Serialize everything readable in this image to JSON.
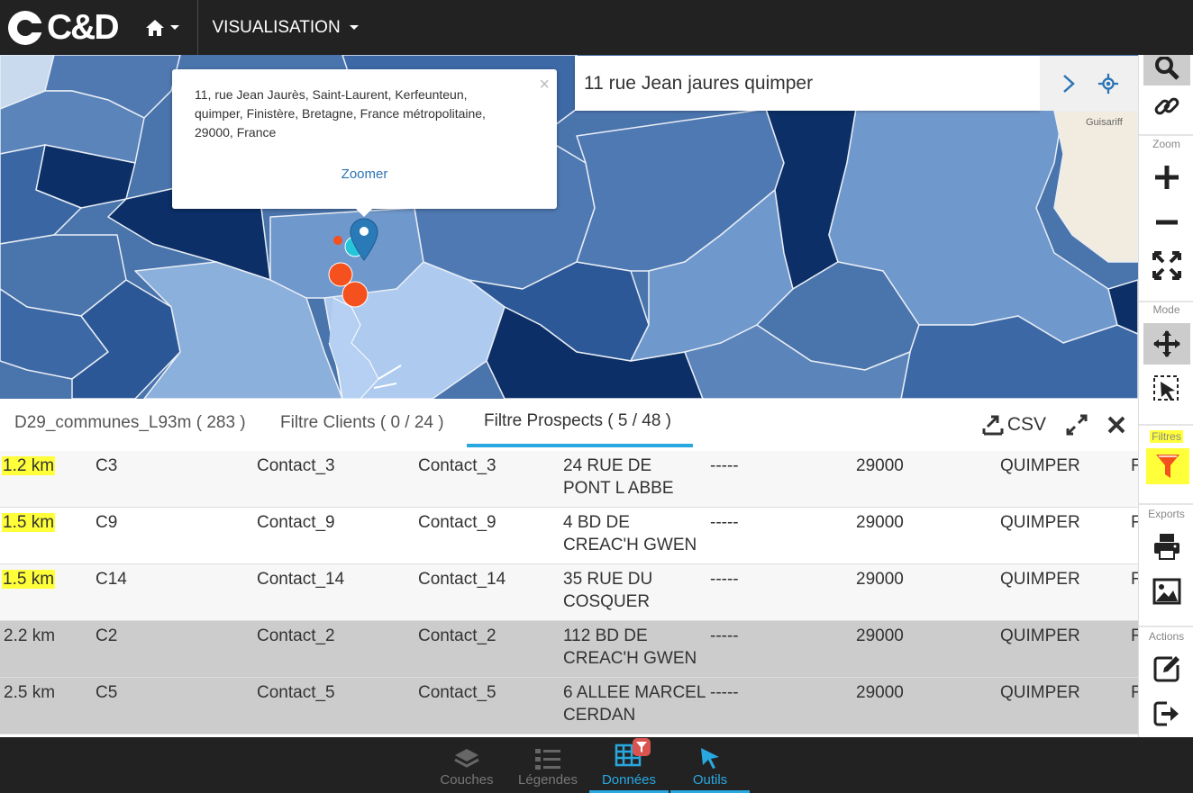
{
  "topbar": {
    "brand": "C&D",
    "menu_label": "VISUALISATION"
  },
  "popup": {
    "address": "11, rue Jean Jaurès, Saint-Laurent, Kerfeunteun, quimper, Finistère, Bretagne, France métropolitaine, 29000, France",
    "close_label": "×",
    "zoom_label": "Zoomer"
  },
  "search": {
    "value": "11 rue Jean jaures quimper"
  },
  "map": {
    "place_label": "Guisariff"
  },
  "rightbar": {
    "zoom_label": "Zoom",
    "mode_label": "Mode",
    "filters_label": "Filtres",
    "exports_label": "Exports",
    "actions_label": "Actions"
  },
  "tabs": [
    {
      "label": "D29_communes_L93m ( 283 )"
    },
    {
      "label": "Filtre Clients ( 0 / 24 )"
    },
    {
      "label": "Filtre Prospects ( 5 / 48 )"
    }
  ],
  "tabtools": {
    "csv_label": "CSV"
  },
  "table": {
    "rows": [
      {
        "dist": "1.2 km",
        "code": "C3",
        "contact1": "Contact_3",
        "contact2": "Contact_3",
        "addr1": "24 RUE DE",
        "addr2": "PONT L ABBE",
        "extra": "-----",
        "cp": "29000",
        "city": "QUIMPER",
        "last": "F"
      },
      {
        "dist": "1.5 km",
        "code": "C9",
        "contact1": "Contact_9",
        "contact2": "Contact_9",
        "addr1": "4 BD DE",
        "addr2": "CREAC'H GWEN",
        "extra": "-----",
        "cp": "29000",
        "city": "QUIMPER",
        "last": "F"
      },
      {
        "dist": "1.5 km",
        "code": "C14",
        "contact1": "Contact_14",
        "contact2": "Contact_14",
        "addr1": "35 RUE DU",
        "addr2": "COSQUER",
        "extra": "-----",
        "cp": "29000",
        "city": "QUIMPER",
        "last": "F"
      },
      {
        "dist": "2.2 km",
        "code": "C2",
        "contact1": "Contact_2",
        "contact2": "Contact_2",
        "addr1": "112 BD DE",
        "addr2": "CREAC'H GWEN",
        "extra": "-----",
        "cp": "29000",
        "city": "QUIMPER",
        "last": "F"
      },
      {
        "dist": "2.5 km",
        "code": "C5",
        "contact1": "Contact_5",
        "contact2": "Contact_5",
        "addr1": "6 ALLEE MARCEL",
        "addr2": "CERDAN",
        "extra": "-----",
        "cp": "29000",
        "city": "QUIMPER",
        "last": "F"
      }
    ]
  },
  "bottombar": {
    "items": [
      {
        "label": "Couches",
        "icon": "layers-icon"
      },
      {
        "label": "Légendes",
        "icon": "legend-icon"
      },
      {
        "label": "Données",
        "icon": "grid-icon"
      },
      {
        "label": "Outils",
        "icon": "pointer-icon"
      }
    ]
  },
  "colors": {
    "accent": "#29a8e0",
    "highlight": "#ffff3a",
    "marker_orange": "#f4511e",
    "filter_orange": "#f4511e"
  }
}
